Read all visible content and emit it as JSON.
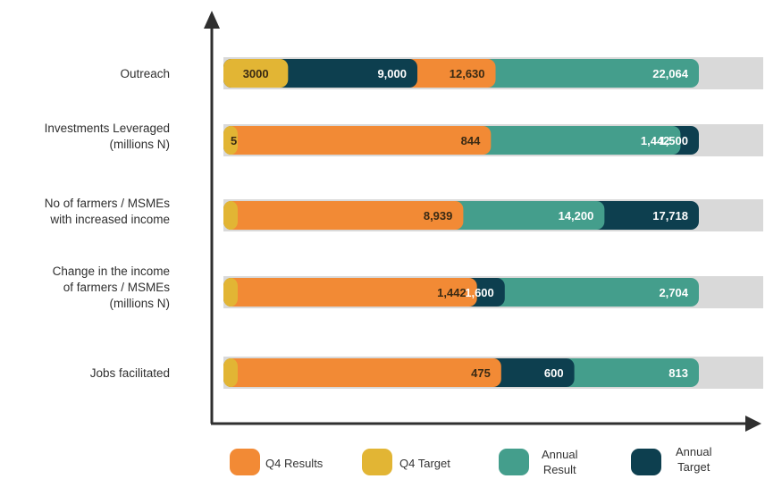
{
  "chart_data": {
    "type": "bar",
    "orientation": "horizontal",
    "layout": "overlapping",
    "legend_position": "bottom",
    "colors": {
      "Q4 Results": "#F28A35",
      "Q4 Target": "#E2B534",
      "Annual Result": "#449E8C",
      "Annual Target": "#0D3F4F",
      "track": "#D9D9D9",
      "axis": "#2f2f2f"
    },
    "categories": [
      {
        "label": "Outreach",
        "segments": [
          {
            "series": "Annual Result",
            "value": 22064,
            "label": "22,064"
          },
          {
            "series": "Q4 Results",
            "value": 12630,
            "label": "12,630"
          },
          {
            "series": "Annual Target",
            "value": 9000,
            "label": "9,000"
          },
          {
            "series": "Q4 Target",
            "value": 3000,
            "label": "3000"
          }
        ]
      },
      {
        "label": "Investments Leveraged\n(millions N)",
        "segments": [
          {
            "series": "Annual Target",
            "value": 1500,
            "label": "1,500"
          },
          {
            "series": "Annual Result",
            "value": 1442,
            "label": "1,442"
          },
          {
            "series": "Q4 Results",
            "value": 844,
            "label": "844"
          },
          {
            "series": "Q4 Target",
            "value": 5,
            "label": "5"
          }
        ]
      },
      {
        "label": "No of farmers / MSMEs\nwith increased income",
        "segments": [
          {
            "series": "Annual Target",
            "value": 17718,
            "label": "17,718"
          },
          {
            "series": "Annual Result",
            "value": 14200,
            "label": "14,200"
          },
          {
            "series": "Q4 Results",
            "value": 8939,
            "label": "8,939"
          },
          {
            "series": "Q4 Target",
            "value": 0,
            "label": ""
          }
        ]
      },
      {
        "label": "Change in the income\nof farmers / MSMEs\n(millions N)",
        "segments": [
          {
            "series": "Annual Result",
            "value": 2704,
            "label": "2,704"
          },
          {
            "series": "Annual Target",
            "value": 1600,
            "label": "1,600"
          },
          {
            "series": "Q4 Results",
            "value": 1442,
            "label": "1,442"
          },
          {
            "series": "Q4 Target",
            "value": 0,
            "label": ""
          }
        ]
      },
      {
        "label": "Jobs facilitated",
        "segments": [
          {
            "series": "Annual Result",
            "value": 813,
            "label": "813"
          },
          {
            "series": "Annual Target",
            "value": 600,
            "label": "600"
          },
          {
            "series": "Q4 Results",
            "value": 475,
            "label": "475"
          },
          {
            "series": "Q4 Target",
            "value": 0,
            "label": ""
          }
        ]
      }
    ],
    "legend": [
      "Q4 Results",
      "Q4 Target",
      "Annual\nResult",
      "Annual\nTarget"
    ],
    "legend_series": [
      "Q4 Results",
      "Q4 Target",
      "Annual Result",
      "Annual Target"
    ]
  }
}
